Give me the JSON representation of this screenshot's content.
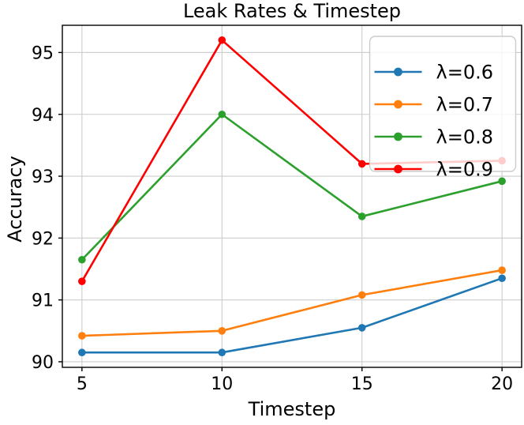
{
  "chart_data": {
    "type": "line",
    "title": "Leak Rates & Timestep",
    "xlabel": "Timestep",
    "ylabel": "Accuracy",
    "x": [
      5,
      10,
      15,
      20
    ],
    "xticks": [
      5,
      10,
      15,
      20
    ],
    "yticks": [
      90,
      91,
      92,
      93,
      94,
      95
    ],
    "xlim": [
      4.3,
      20.7
    ],
    "ylim": [
      89.91,
      95.44
    ],
    "grid": true,
    "legend_position": "upper right",
    "series": [
      {
        "name": "λ=0.6",
        "color": "#1f77b4",
        "values": [
          90.15,
          90.15,
          90.55,
          91.35
        ]
      },
      {
        "name": "λ=0.7",
        "color": "#ff7f0e",
        "values": [
          90.42,
          90.5,
          91.08,
          91.48
        ]
      },
      {
        "name": "λ=0.8",
        "color": "#2ca02c",
        "values": [
          91.65,
          94.0,
          92.35,
          92.92
        ]
      },
      {
        "name": "λ=0.9",
        "color": "#ff0000",
        "values": [
          91.3,
          95.2,
          93.2,
          93.25
        ]
      }
    ],
    "style": {
      "grid_color": "#cccccc",
      "spine_color": "#000000",
      "text_color": "#000000",
      "legend_bg_color": "#ffffff",
      "legend_bg_opacity": 0.8,
      "legend_border_color": "#cccccc",
      "line_width": 2.6,
      "marker_radius": 4.8
    }
  }
}
